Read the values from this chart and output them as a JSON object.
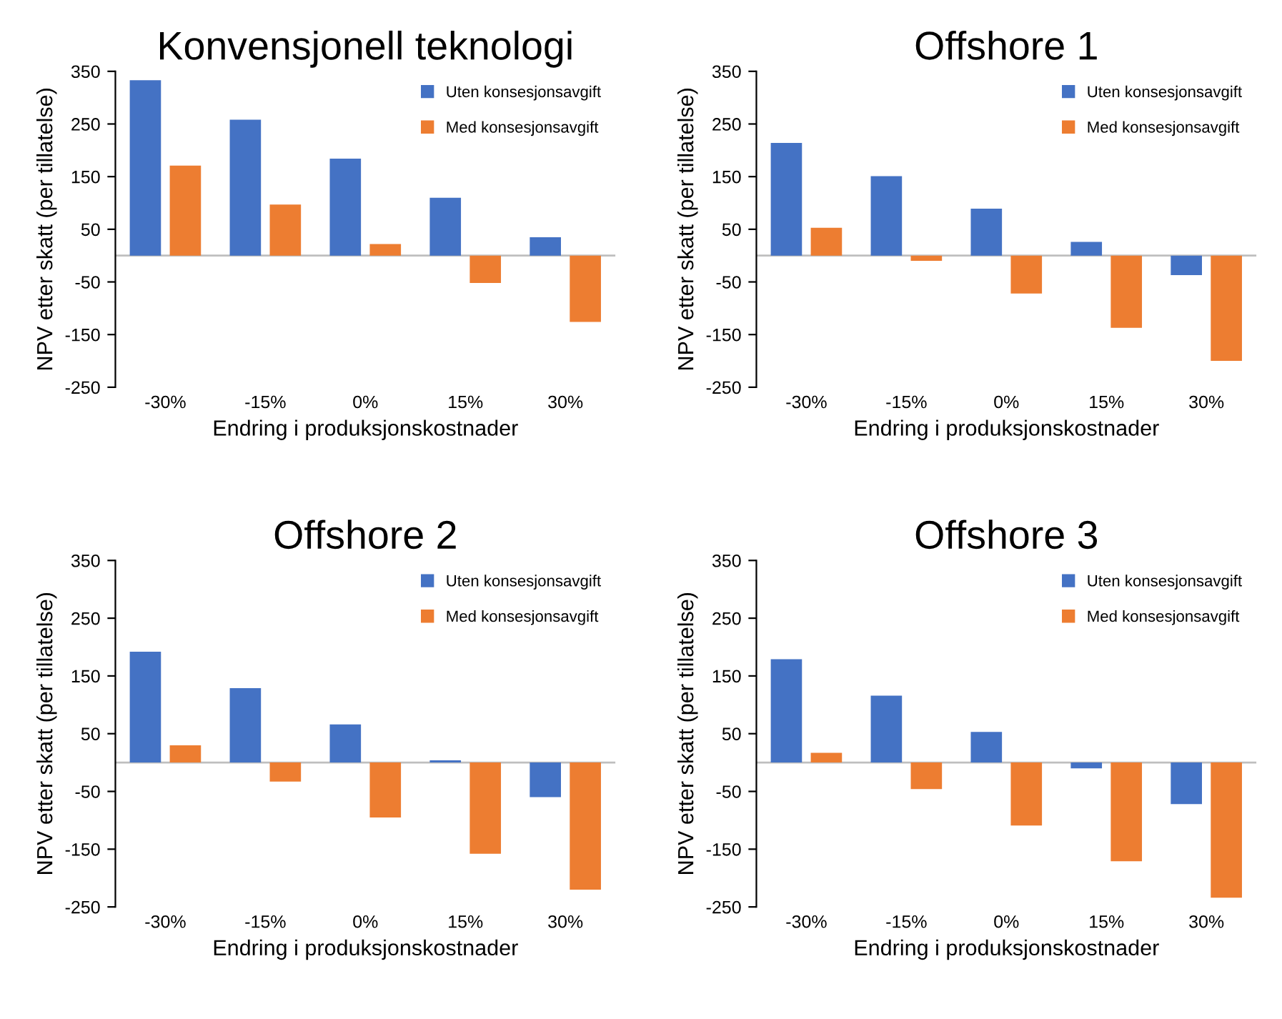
{
  "chart_data": [
    {
      "type": "bar",
      "title": "Konvensjonell teknologi",
      "xlabel": "Endring i produksjonskostnader",
      "ylabel": "NPV etter skatt (per tillatelse)",
      "categories": [
        "-30%",
        "-15%",
        "0%",
        "15%",
        "30%"
      ],
      "ylim": [
        -250,
        350
      ],
      "yticks": [
        -250,
        -150,
        -50,
        50,
        150,
        250,
        350
      ],
      "grid": false,
      "legend": "top right",
      "series": [
        {
          "name": "Uten konsesjonsavgift",
          "color": "#4472c4",
          "values": [
            333,
            258,
            184,
            110,
            35
          ]
        },
        {
          "name": "Med konsesjonsavgift",
          "color": "#ed7d31",
          "values": [
            171,
            97,
            22,
            -52,
            -126
          ]
        }
      ]
    },
    {
      "type": "bar",
      "title": "Offshore 1",
      "xlabel": "Endring i produksjonskostnader",
      "ylabel": "NPV etter skatt (per tillatelse)",
      "categories": [
        "-30%",
        "-15%",
        "0%",
        "15%",
        "30%"
      ],
      "ylim": [
        -250,
        350
      ],
      "yticks": [
        -250,
        -150,
        -50,
        50,
        150,
        250,
        350
      ],
      "grid": false,
      "legend": "top right",
      "series": [
        {
          "name": "Uten konsesjonsavgift",
          "color": "#4472c4",
          "values": [
            214,
            151,
            89,
            26,
            -37
          ]
        },
        {
          "name": "Med konsesjonsavgift",
          "color": "#ed7d31",
          "values": [
            53,
            -10,
            -72,
            -137,
            -200
          ]
        }
      ]
    },
    {
      "type": "bar",
      "title": "Offshore 2",
      "xlabel": "Endring i produksjonskostnader",
      "ylabel": "NPV etter skatt (per tillatelse)",
      "categories": [
        "-30%",
        "-15%",
        "0%",
        "15%",
        "30%"
      ],
      "ylim": [
        -250,
        350
      ],
      "yticks": [
        -250,
        -150,
        -50,
        50,
        150,
        250,
        350
      ],
      "grid": false,
      "legend": "top right",
      "series": [
        {
          "name": "Uten konsesjonsavgift",
          "color": "#4472c4",
          "values": [
            192,
            129,
            66,
            4,
            -60
          ]
        },
        {
          "name": "Med konsesjonsavgift",
          "color": "#ed7d31",
          "values": [
            30,
            -33,
            -95,
            -158,
            -220
          ]
        }
      ]
    },
    {
      "type": "bar",
      "title": "Offshore 3",
      "xlabel": "Endring i produksjonskostnader",
      "ylabel": "NPV etter skatt (per tillatelse)",
      "categories": [
        "-30%",
        "-15%",
        "0%",
        "15%",
        "30%"
      ],
      "ylim": [
        -250,
        350
      ],
      "yticks": [
        -250,
        -150,
        -50,
        50,
        150,
        250,
        350
      ],
      "grid": false,
      "legend": "top right",
      "series": [
        {
          "name": "Uten konsesjonsavgift",
          "color": "#4472c4",
          "values": [
            179,
            116,
            53,
            -10,
            -72
          ]
        },
        {
          "name": "Med konsesjonsavgift",
          "color": "#ed7d31",
          "values": [
            17,
            -46,
            -109,
            -171,
            -234
          ]
        }
      ]
    }
  ]
}
